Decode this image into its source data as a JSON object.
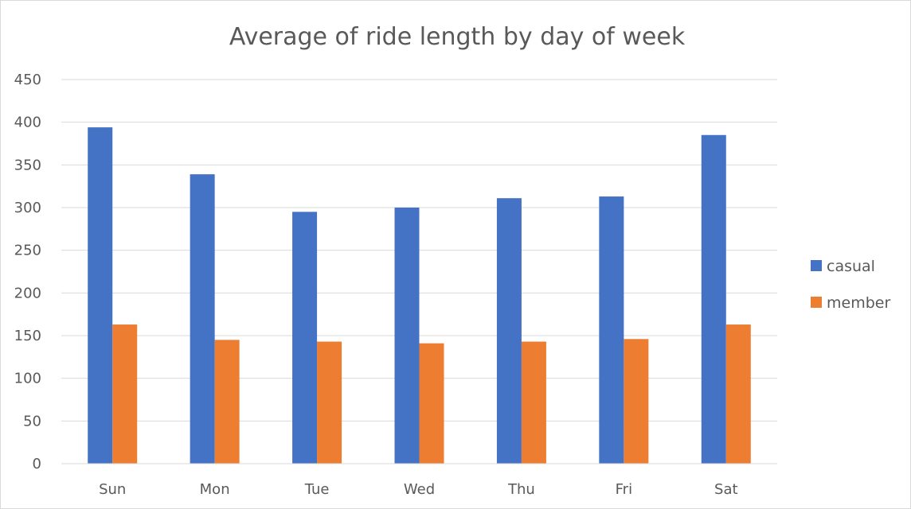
{
  "chart_data": {
    "type": "bar",
    "title": "Average of ride length by day of week",
    "xlabel": "",
    "ylabel": "",
    "categories": [
      "Sun",
      "Mon",
      "Tue",
      "Wed",
      "Thu",
      "Fri",
      "Sat"
    ],
    "series": [
      {
        "name": "casual",
        "color": "#4472C4",
        "values": [
          394,
          339,
          295,
          300,
          311,
          313,
          385
        ]
      },
      {
        "name": "member",
        "color": "#ED7D31",
        "values": [
          163,
          145,
          143,
          141,
          143,
          146,
          163
        ]
      }
    ],
    "ylim": [
      0,
      450
    ],
    "yticks": [
      "0",
      "50",
      "100",
      "150",
      "200",
      "250",
      "300",
      "350",
      "400",
      "450"
    ],
    "grid": true,
    "legend_position": "right"
  }
}
